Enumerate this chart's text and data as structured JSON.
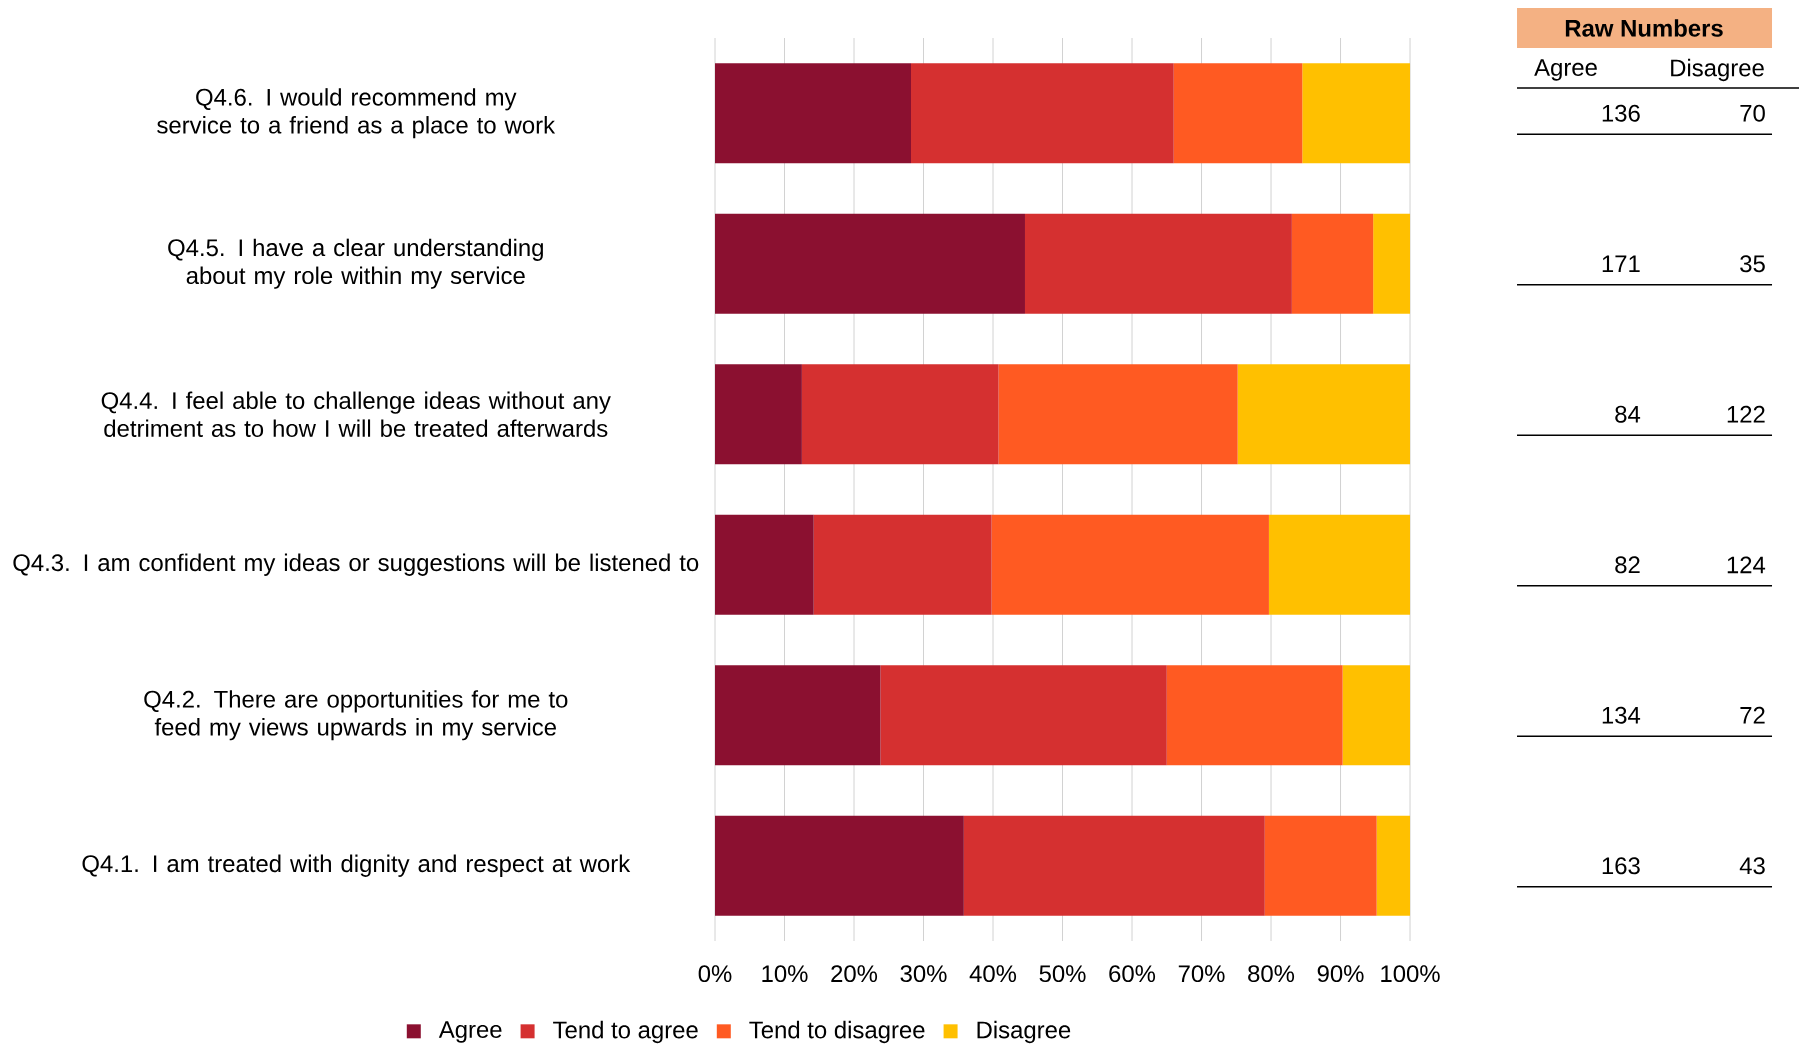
{
  "chart_data": {
    "type": "bar",
    "orientation": "horizontal",
    "stacked": true,
    "categories": [
      "Q4.6. I would recommend my service to a friend as a place to work",
      "Q4.5. I have a clear understanding about my role within my service",
      "Q4.4. I feel able to challenge ideas without any detriment as to how I will be treated afterwards",
      "Q4.3. I am confident my ideas or suggestions will be listened to",
      "Q4.2. There are opportunities for me to feed my views upwards in my service",
      "Q4.1. I am treated with dignity and respect at work"
    ],
    "series": [
      {
        "name": "Agree",
        "color": "#8b1030",
        "values": [
          28.2,
          44.6,
          12.5,
          14.2,
          23.8,
          35.8
        ]
      },
      {
        "name": "Tend to agree",
        "color": "#d53030",
        "values": [
          37.8,
          38.4,
          28.3,
          25.6,
          41.2,
          43.3
        ]
      },
      {
        "name": "Tend to disagree",
        "color": "#ff5a22",
        "values": [
          18.5,
          11.7,
          34.4,
          39.9,
          25.3,
          16.1
        ]
      },
      {
        "name": "Disagree",
        "color": "#ffc000",
        "values": [
          15.5,
          5.3,
          24.8,
          20.3,
          9.7,
          4.8
        ]
      }
    ],
    "xlim": [
      0,
      100
    ],
    "xticks": [
      {
        "value": 0,
        "label": "0%"
      },
      {
        "value": 10,
        "label": "10%"
      },
      {
        "value": 20,
        "label": "20%"
      },
      {
        "value": 30,
        "label": "30%"
      },
      {
        "value": 40,
        "label": "40%"
      },
      {
        "value": 50,
        "label": "50%"
      },
      {
        "value": 60,
        "label": "60%"
      },
      {
        "value": 70,
        "label": "70%"
      },
      {
        "value": 80,
        "label": "80%"
      },
      {
        "value": 90,
        "label": "90%"
      },
      {
        "value": 100,
        "label": "100%"
      }
    ],
    "grid": "x",
    "legend": "bottom",
    "annotations": [
      "Raw Numbers",
      "Agree",
      "Disagree",
      "136",
      "70",
      "171",
      "35",
      "84",
      "122",
      "82",
      "124",
      "134",
      "72",
      "163",
      "43"
    ]
  }
}
